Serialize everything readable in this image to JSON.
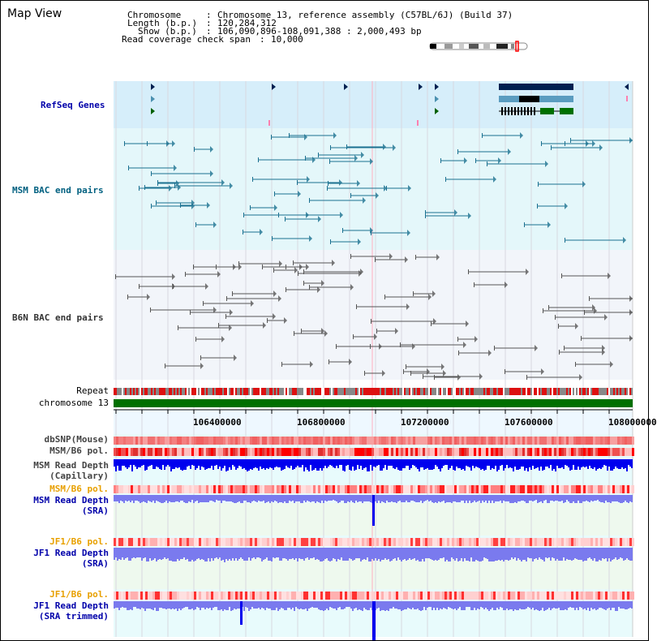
{
  "title": "Map View",
  "header": {
    "chromosome_label": "Chromosome",
    "chromosome_value": "Chromosome 13, reference assembly (C57BL/6J) (Build 37)",
    "length_label": "Length (b.p.)",
    "length_value": "120,284,312",
    "show_label": "Show (b.p.)",
    "show_value": "106,090,896-108,091,388 : 2,000,493 bp",
    "coverage_label": "Read coverage check span",
    "coverage_value": "10,000"
  },
  "tracks": {
    "refseq": "RefSeq Genes",
    "msm_bac": "MSM BAC end pairs",
    "b6n_bac": "B6N BAC end pairs",
    "repeat": "Repeat",
    "chromosome": "chromosome 13",
    "dbsnp": "dbSNP(Mouse)",
    "msm_b6_pol_1": "MSM/B6 pol.",
    "msm_depth_cap_1": "MSM Read Depth",
    "msm_depth_cap_2": "(Capillary)",
    "msm_b6_pol_2": "MSM/B6 pol.",
    "msm_depth_sra_1": "MSM Read Depth",
    "msm_depth_sra_2": "(SRA)",
    "jf1_b6_pol_1": "JF1/B6 pol.",
    "jf1_depth_sra_1": "JF1 Read Depth",
    "jf1_depth_sra_2": "(SRA)",
    "jf1_b6_pol_2": "JF1/B6 pol.",
    "jf1_depth_trim_1": "JF1 Read Depth",
    "jf1_depth_trim_2": "(SRA trimmed)"
  },
  "scale": {
    "ticks": [
      "106400000",
      "106800000",
      "107200000",
      "107600000",
      "108000000"
    ]
  },
  "colors": {
    "refseq_bg": "#d6eefa",
    "msm_bac_bg": "#e4f7fa",
    "b6n_bac_bg": "#f2f5fa",
    "label_blue": "#0000aa",
    "label_teal": "#006080",
    "label_orange": "#e8a000",
    "chromosome_bar": "#007000",
    "depth_dark": "#0000ee",
    "depth_light": "#7a7aee",
    "pol_red": "#ff0000",
    "gene_navy": "#002050"
  }
}
